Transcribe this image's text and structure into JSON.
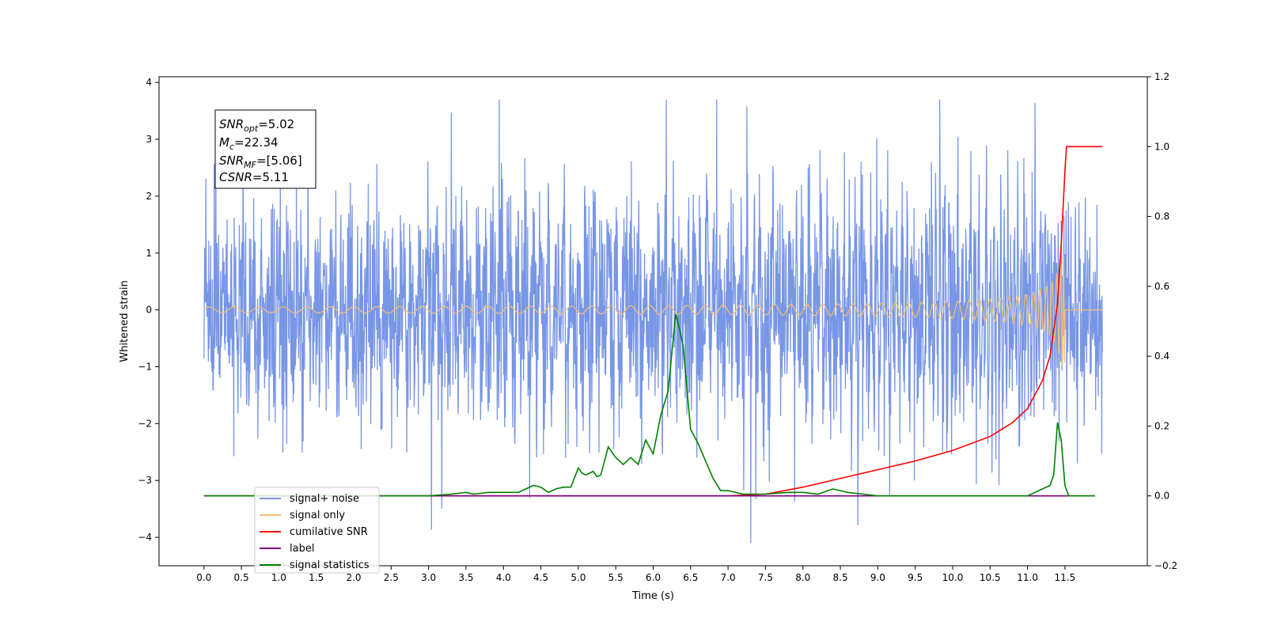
{
  "chart_data": {
    "type": "line",
    "xlabel": "Time (s)",
    "ylabel_left": "Whitened strain",
    "ylabel_right": "",
    "xlim": [
      -0.6,
      12.6
    ],
    "ylim_left": [
      -4.5,
      4.1
    ],
    "ylim_right": [
      -0.2,
      1.2
    ],
    "x_ticks": [
      "0.0",
      "0.5",
      "1.0",
      "1.5",
      "2.0",
      "2.5",
      "3.0",
      "3.5",
      "4.0",
      "4.5",
      "5.0",
      "5.5",
      "6.0",
      "6.5",
      "7.0",
      "7.5",
      "8.0",
      "8.5",
      "9.0",
      "9.5",
      "10.0",
      "10.5",
      "11.0",
      "11.5"
    ],
    "y_ticks_left": [
      "4",
      "3",
      "2",
      "1",
      "0",
      "−1",
      "−2",
      "−3",
      "−4"
    ],
    "y_ticks_right": [
      "1.2",
      "1.0",
      "0.8",
      "0.6",
      "0.4",
      "0.2",
      "0.0",
      "−0.2"
    ],
    "grid": false,
    "legend_position": "lower-left",
    "annotation": {
      "snr_opt": {
        "name": "SNR",
        "sub": "opt",
        "value": "=5.02"
      },
      "mc": {
        "name": "M",
        "sub": "c",
        "value": "=22.34"
      },
      "snr_mf": {
        "name": "SNR",
        "sub": "MF",
        "value": "=[5.06]"
      },
      "csnr": {
        "name": "CSNR",
        "sub": "",
        "value": "=5.11"
      }
    },
    "series": [
      {
        "name": "signal+ noise",
        "axis": "left",
        "color": "#7896e6",
        "description_values": {
          "x_range": [
            0.0,
            12.0
          ],
          "envelope_min": -4.1,
          "envelope_max": 3.7,
          "typical_amplitude": 2.0
        }
      },
      {
        "name": "signal only",
        "axis": "left",
        "color": "#f5bf70",
        "chirp": {
          "x_start": 0.0,
          "merger": 11.5,
          "x_end": 12.0,
          "peak_amplitude": 1.0
        }
      },
      {
        "name": "cumilative SNR",
        "axis": "right",
        "color": "#ff0000",
        "x": [
          0.0,
          7.0,
          7.5,
          8.0,
          8.5,
          9.0,
          9.5,
          10.0,
          10.5,
          10.8,
          11.0,
          11.2,
          11.3,
          11.4,
          11.45,
          11.5,
          11.52,
          11.6,
          12.0
        ],
        "y": [
          0.0,
          0.0,
          0.005,
          0.025,
          0.05,
          0.075,
          0.1,
          0.13,
          0.17,
          0.21,
          0.25,
          0.33,
          0.4,
          0.55,
          0.72,
          0.93,
          1.0,
          1.0,
          1.0
        ]
      },
      {
        "name": "label",
        "axis": "right",
        "color": "#800080",
        "x": [
          0.0,
          11.9
        ],
        "y": [
          0.0,
          0.0
        ]
      },
      {
        "name": "signal statistics",
        "axis": "right",
        "color": "#008000",
        "x": [
          0.0,
          1.0,
          2.0,
          3.0,
          3.3,
          3.5,
          3.6,
          3.8,
          4.0,
          4.2,
          4.3,
          4.4,
          4.5,
          4.6,
          4.7,
          4.8,
          4.9,
          5.0,
          5.05,
          5.1,
          5.2,
          5.25,
          5.3,
          5.4,
          5.5,
          5.6,
          5.7,
          5.8,
          5.9,
          6.0,
          6.1,
          6.2,
          6.3,
          6.35,
          6.4,
          6.5,
          6.6,
          6.7,
          6.8,
          6.9,
          7.0,
          7.1,
          7.2,
          7.3,
          7.5,
          7.8,
          8.0,
          8.2,
          8.4,
          8.6,
          8.8,
          9.0,
          10.0,
          11.0,
          11.3,
          11.35,
          11.4,
          11.45,
          11.5,
          11.55,
          11.6,
          11.9
        ],
        "y": [
          0.0,
          0.0,
          0.0,
          0.0,
          0.005,
          0.01,
          0.005,
          0.01,
          0.01,
          0.01,
          0.02,
          0.03,
          0.025,
          0.01,
          0.02,
          0.025,
          0.025,
          0.08,
          0.065,
          0.06,
          0.07,
          0.055,
          0.06,
          0.14,
          0.11,
          0.09,
          0.11,
          0.09,
          0.16,
          0.12,
          0.23,
          0.3,
          0.52,
          0.48,
          0.43,
          0.19,
          0.15,
          0.1,
          0.05,
          0.015,
          0.015,
          0.01,
          0.005,
          0.005,
          0.005,
          0.01,
          0.01,
          0.005,
          0.02,
          0.01,
          0.005,
          0.0,
          0.0,
          0.0,
          0.03,
          0.06,
          0.21,
          0.16,
          0.03,
          0.0,
          0.0,
          0.0
        ]
      }
    ]
  }
}
